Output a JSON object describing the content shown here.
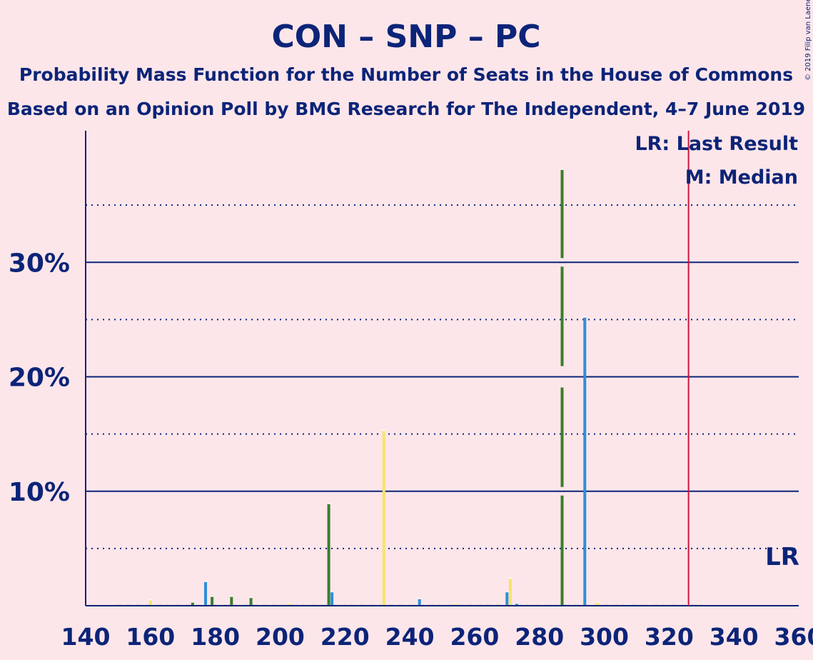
{
  "chart_data": {
    "type": "bar",
    "title": "CON – SNP – PC",
    "subtitle_1": "Probability Mass Function for the Number of Seats in the House of Commons",
    "subtitle_2": "Based on an Opinion Poll by BMG Research for The Independent, 4–7 June 2019",
    "copyright": "© 2019 Filip van Laenen",
    "xlim": [
      140,
      360
    ],
    "ylim": [
      0,
      41.5
    ],
    "x_ticks": [
      {
        "value": 140,
        "label": "140"
      },
      {
        "value": 160,
        "label": "160"
      },
      {
        "value": 180,
        "label": "180"
      },
      {
        "value": 200,
        "label": "200"
      },
      {
        "value": 220,
        "label": "220"
      },
      {
        "value": 240,
        "label": "240"
      },
      {
        "value": 260,
        "label": "260"
      },
      {
        "value": 280,
        "label": "280"
      },
      {
        "value": 300,
        "label": "300"
      },
      {
        "value": 320,
        "label": "320"
      },
      {
        "value": 340,
        "label": "340"
      },
      {
        "value": 360,
        "label": "360"
      }
    ],
    "y_major": [
      {
        "value": 10,
        "label": "10%"
      },
      {
        "value": 20,
        "label": "20%"
      },
      {
        "value": 30,
        "label": "30%"
      }
    ],
    "y_minor": [
      5,
      15,
      25,
      35
    ],
    "colors": {
      "background": "#FDE6EA",
      "axis": "#0C2478",
      "green": "#3A7D2A",
      "blue": "#2D8FD6",
      "yellow": "#F5E46A",
      "last_result": "#D0143C"
    },
    "bars": [
      {
        "x": 160,
        "y": 0.5,
        "color": "yellow"
      },
      {
        "x": 173,
        "y": 0.3,
        "color": "green"
      },
      {
        "x": 177,
        "y": 2.1,
        "color": "blue"
      },
      {
        "x": 179,
        "y": 0.8,
        "color": "green"
      },
      {
        "x": 185,
        "y": 0.8,
        "color": "green"
      },
      {
        "x": 191,
        "y": 0.7,
        "color": "green"
      },
      {
        "x": 203,
        "y": 0.2,
        "color": "yellow"
      },
      {
        "x": 215,
        "y": 8.9,
        "color": "green"
      },
      {
        "x": 216,
        "y": 1.2,
        "color": "blue"
      },
      {
        "x": 232,
        "y": 15.3,
        "color": "yellow"
      },
      {
        "x": 243,
        "y": 0.6,
        "color": "blue"
      },
      {
        "x": 254,
        "y": 0.2,
        "color": "yellow"
      },
      {
        "x": 270,
        "y": 1.2,
        "color": "blue"
      },
      {
        "x": 271,
        "y": 2.4,
        "color": "yellow"
      },
      {
        "x": 273,
        "y": 0.2,
        "color": "blue"
      },
      {
        "x": 287,
        "y": 38.1,
        "color": "green"
      },
      {
        "x": 294,
        "y": 25.2,
        "color": "blue"
      },
      {
        "x": 298,
        "y": 0.3,
        "color": "yellow"
      },
      {
        "x": 307,
        "y": 0.1,
        "color": "blue"
      }
    ],
    "last_result": {
      "x": 326,
      "label": "LR"
    },
    "median": {
      "x": 287
    },
    "legend": [
      {
        "text": "LR: Last Result"
      },
      {
        "text": "M: Median"
      }
    ]
  }
}
